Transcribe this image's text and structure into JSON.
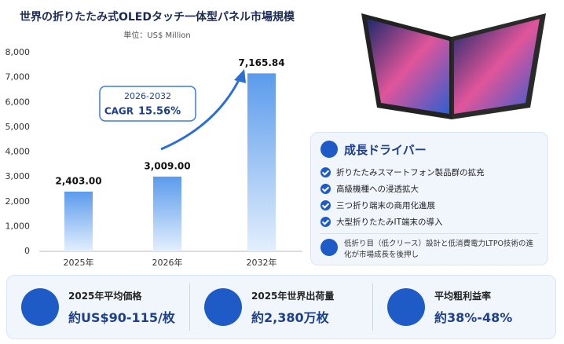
{
  "chart_data": {
    "type": "bar",
    "title": "世界の折りたたみ式OLEDタッチ一体型パネル市場規模",
    "subtitle": "単位：US$ Million",
    "categories": [
      "2025年",
      "2026年",
      "2032年"
    ],
    "values": [
      2403,
      3009,
      7165.84
    ],
    "value_labels": [
      "2,403.00",
      "3,009.00",
      "7,165.84"
    ],
    "color": "#5b9bec",
    "ylim": [
      0,
      8000
    ],
    "yticks": [
      0,
      {
        "value": 1000,
        "label": "1,000"
      },
      {
        "value": 2000,
        "label": "2,000"
      },
      {
        "value": 3000,
        "label": "3,000"
      },
      {
        "value": 4000,
        "label": "4,000"
      },
      {
        "value": 5000,
        "label": "5,000"
      },
      {
        "value": 6000,
        "label": "6,000"
      },
      {
        "value": 7000,
        "label": "7,000"
      },
      {
        "value": 8000,
        "label": "8,000"
      }
    ],
    "grid": false,
    "annotations": [
      "2026-2032",
      "CAGR",
      "15.56%"
    ]
  },
  "drivers": {
    "title": "成長ドライバー",
    "items": [
      "折りたたみスマートフォン製品群の拡充",
      "高級機種への浸透拡大",
      "三つ折り端末の商用化進展",
      "大型折りたたみIT端末の導入"
    ],
    "note": "低折り目（低クリース）設計と低消費電力LTPO技術の進化が市場成長を後押し"
  },
  "stats": [
    {
      "label": "2025年平均価格",
      "value": "約US$90-115/枚"
    },
    {
      "label": "2025年世界出荷量",
      "value": "約2,380万枚"
    },
    {
      "label": "平均粗利益率",
      "value": "約38%-48%"
    }
  ]
}
